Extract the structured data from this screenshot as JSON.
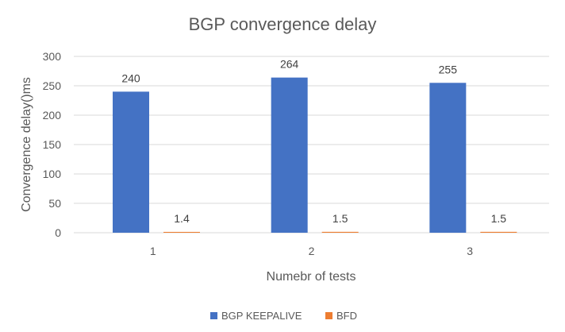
{
  "chart_data": {
    "type": "bar",
    "title": "BGP convergence delay",
    "xlabel": "Numebr of tests",
    "ylabel": "Convergence delay()ms",
    "categories": [
      "1",
      "2",
      "3"
    ],
    "series": [
      {
        "name": "BGP KEEPALIVE",
        "values": [
          240,
          264,
          255
        ],
        "labels": [
          "240",
          "264",
          "255"
        ],
        "color": "#4472C4"
      },
      {
        "name": "BFD",
        "values": [
          1.4,
          1.5,
          1.5
        ],
        "labels": [
          "1.4",
          "1.5",
          "1.5"
        ],
        "color": "#ED7D31"
      }
    ],
    "ylim": [
      0,
      300
    ],
    "yticks": [
      0,
      50,
      100,
      150,
      200,
      250,
      300
    ],
    "ytick_labels": [
      "0",
      "50",
      "100",
      "150",
      "200",
      "250",
      "300"
    ],
    "grid": true,
    "legend_position": "bottom"
  }
}
